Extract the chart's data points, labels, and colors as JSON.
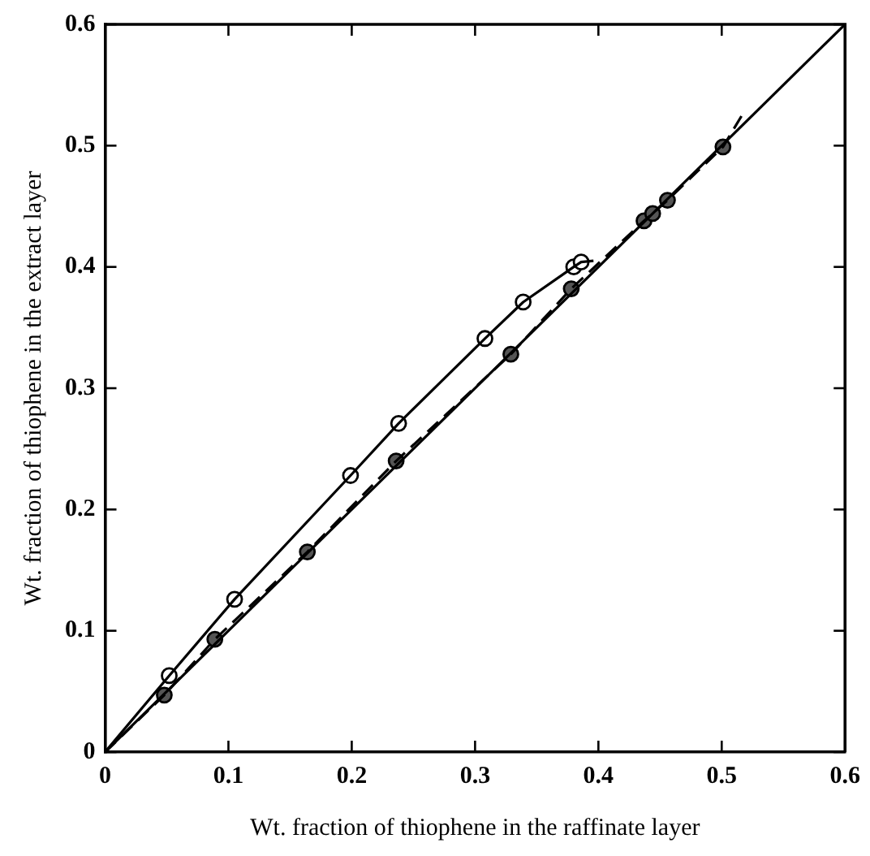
{
  "chart_data": {
    "type": "line",
    "xlabel": "Wt. fraction of thiophene in the raffinate layer",
    "ylabel": "Wt. fraction of thiophene in the extract layer",
    "xlim": [
      0,
      0.6
    ],
    "ylim": [
      0,
      0.6
    ],
    "xticks": [
      0,
      0.1,
      0.2,
      0.3,
      0.4,
      0.5,
      0.6
    ],
    "yticks": [
      0,
      0.1,
      0.2,
      0.3,
      0.4,
      0.5,
      0.6
    ],
    "grid": false,
    "legend": false,
    "series": [
      {
        "color": "#000000",
        "marker": "none",
        "line_style": "solid",
        "x": [
          0,
          0.6
        ],
        "values": [
          0,
          0.6
        ]
      },
      {
        "color": "#000000",
        "marker": "none",
        "line_style": "solid",
        "x": [
          0,
          0.052,
          0.105,
          0.199,
          0.238,
          0.308,
          0.339,
          0.38,
          0.386,
          0.396
        ],
        "values": [
          0,
          0.063,
          0.126,
          0.228,
          0.271,
          0.341,
          0.371,
          0.4,
          0.404,
          0.405
        ]
      },
      {
        "color": "#000000",
        "marker": "none",
        "line_style": "dashed",
        "x": [
          0,
          0.048,
          0.089,
          0.164,
          0.236,
          0.329,
          0.378,
          0.437,
          0.444,
          0.456,
          0.501,
          0.517
        ],
        "values": [
          0,
          0.047,
          0.093,
          0.165,
          0.24,
          0.328,
          0.382,
          0.438,
          0.444,
          0.455,
          0.499,
          0.526
        ]
      },
      {
        "type": "scatter",
        "color": "#000000",
        "marker": "circle",
        "x": [
          0.052,
          0.105,
          0.199,
          0.238,
          0.308,
          0.339,
          0.38,
          0.386
        ],
        "values": [
          0.063,
          0.126,
          0.228,
          0.271,
          0.341,
          0.371,
          0.4,
          0.404
        ]
      },
      {
        "type": "scatter",
        "color": "#555555",
        "marker": "circle",
        "x": [
          0.048,
          0.089,
          0.164,
          0.236,
          0.329,
          0.378,
          0.437,
          0.444,
          0.456,
          0.501
        ],
        "values": [
          0.047,
          0.093,
          0.165,
          0.24,
          0.328,
          0.382,
          0.438,
          0.444,
          0.455,
          0.499
        ]
      }
    ]
  }
}
